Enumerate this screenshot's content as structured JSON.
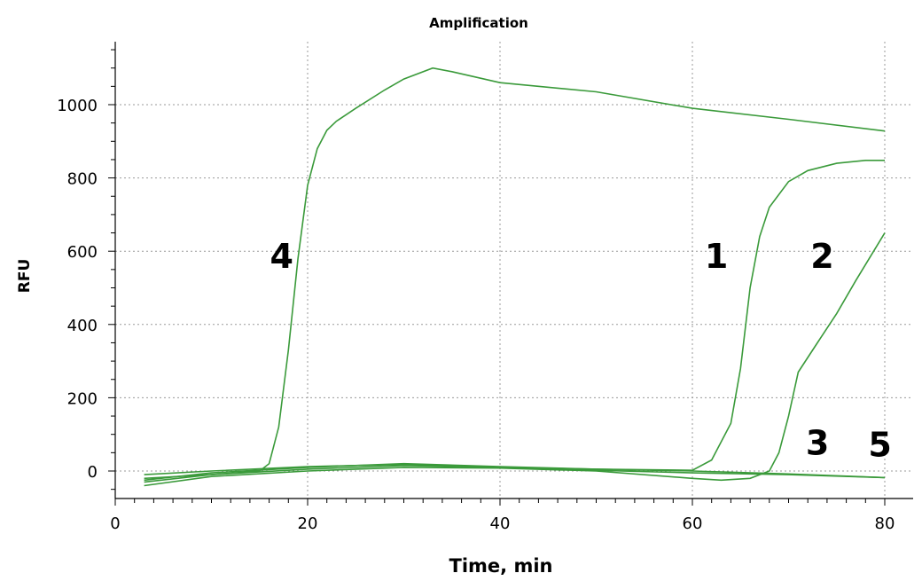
{
  "chart_data": {
    "type": "line",
    "title": "Amplification",
    "xlabel": "Time, min",
    "ylabel": "RFU",
    "xlim": [
      0,
      80
    ],
    "ylim": [
      -60,
      1150
    ],
    "xticks": [
      0,
      20,
      40,
      60,
      80
    ],
    "yticks": [
      0,
      200,
      400,
      600,
      800,
      1000
    ],
    "grid": true,
    "series_color": "#3a9a3a",
    "series": [
      {
        "name": "1",
        "x": [
          3,
          10,
          20,
          30,
          40,
          50,
          60,
          62,
          64,
          65,
          66,
          67,
          68,
          70,
          72,
          75,
          78,
          80
        ],
        "y": [
          -30,
          -10,
          5,
          15,
          10,
          5,
          2,
          30,
          130,
          280,
          500,
          640,
          720,
          790,
          820,
          840,
          848,
          848
        ]
      },
      {
        "name": "2",
        "x": [
          3,
          10,
          20,
          30,
          40,
          50,
          60,
          63,
          66,
          68,
          69,
          70,
          71,
          73,
          75,
          77,
          80
        ],
        "y": [
          -40,
          -15,
          0,
          10,
          8,
          0,
          -20,
          -25,
          -20,
          0,
          50,
          150,
          270,
          350,
          430,
          520,
          650
        ]
      },
      {
        "name": "3",
        "x": [
          3,
          10,
          20,
          30,
          40,
          50,
          60,
          70,
          80
        ],
        "y": [
          -25,
          -5,
          10,
          20,
          12,
          5,
          0,
          -8,
          -18
        ]
      },
      {
        "name": "4",
        "x": [
          3,
          10,
          15,
          16,
          17,
          18,
          19,
          20,
          21,
          22,
          23,
          25,
          28,
          30,
          33,
          35,
          40,
          50,
          60,
          70,
          80
        ],
        "y": [
          -20,
          -10,
          0,
          20,
          120,
          330,
          580,
          780,
          880,
          930,
          955,
          990,
          1040,
          1070,
          1100,
          1090,
          1060,
          1035,
          990,
          960,
          928
        ]
      },
      {
        "name": "5",
        "x": [
          3,
          10,
          20,
          30,
          40,
          50,
          60,
          70,
          80
        ],
        "y": [
          -10,
          0,
          12,
          18,
          10,
          2,
          -5,
          -10,
          -18
        ]
      }
    ],
    "curve_labels": [
      {
        "text": "4",
        "x": 17.3,
        "y": 555
      },
      {
        "text": "1",
        "x": 62.5,
        "y": 555
      },
      {
        "text": "2",
        "x": 73.5,
        "y": 555
      },
      {
        "text": "3",
        "x": 73.0,
        "y": 45
      },
      {
        "text": "5",
        "x": 79.5,
        "y": 40
      }
    ]
  }
}
